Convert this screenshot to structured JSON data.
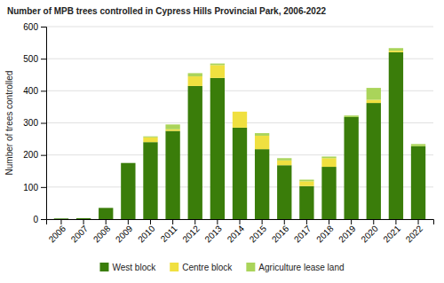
{
  "chart_data": {
    "type": "bar",
    "stacked": true,
    "title": "Number of MPB trees controlled in Cypress Hills Provincial Park, 2006-2022",
    "categories": [
      "2006",
      "2007",
      "2008",
      "2009",
      "2010",
      "2011",
      "2012",
      "2013",
      "2014",
      "2015",
      "2016",
      "2017",
      "2018",
      "2019",
      "2020",
      "2021",
      "2022"
    ],
    "series": [
      {
        "name": "West block",
        "color": "#3a7d0a",
        "values": [
          2,
          3,
          35,
          175,
          240,
          275,
          415,
          440,
          285,
          218,
          168,
          103,
          163,
          318,
          362,
          520,
          227
        ]
      },
      {
        "name": "Centre block",
        "color": "#f0e040",
        "values": [
          0,
          0,
          0,
          0,
          15,
          5,
          30,
          40,
          50,
          42,
          15,
          15,
          27,
          0,
          10,
          5,
          0
        ]
      },
      {
        "name": "Agriculture lease land",
        "color": "#aad45a",
        "values": [
          0,
          0,
          0,
          0,
          3,
          15,
          10,
          5,
          0,
          8,
          7,
          5,
          5,
          5,
          37,
          8,
          7
        ]
      }
    ],
    "ylabel": "Number of trees controlled",
    "ylim": [
      0,
      600
    ],
    "yticks": [
      0,
      100,
      200,
      300,
      400,
      500,
      600
    ],
    "grid": true,
    "legend": "bottom"
  }
}
